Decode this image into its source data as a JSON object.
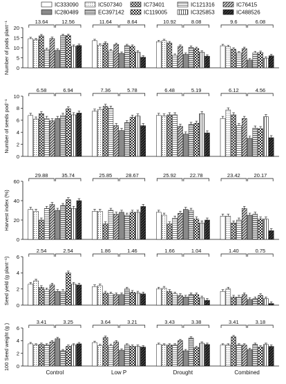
{
  "legend": [
    {
      "name": "IC333090",
      "pattern": "p0"
    },
    {
      "name": "IC507340",
      "pattern": "p1"
    },
    {
      "name": "IC73401",
      "pattern": "p2"
    },
    {
      "name": "IC121316",
      "pattern": "p3"
    },
    {
      "name": "IC76415",
      "pattern": "p4"
    },
    {
      "name": "IC280489",
      "pattern": "p5"
    },
    {
      "name": "EC397142",
      "pattern": "p6"
    },
    {
      "name": "IC119005",
      "pattern": "p7"
    },
    {
      "name": "IC325853",
      "pattern": "p8"
    },
    {
      "name": "IC488526",
      "pattern": "p9"
    }
  ],
  "chart_data": [
    {
      "type": "bar",
      "ylabel": "Number of pods plant⁻¹",
      "ylim": [
        0,
        20
      ],
      "yticks": [
        "0",
        "5",
        "10",
        "15",
        "20"
      ],
      "categories": [
        "Control",
        "Low P",
        "Drought",
        "Combined"
      ],
      "lsd": [
        "13.64",
        "12.56",
        "11.64",
        "8.64",
        "10.92",
        "8.08",
        "9.6",
        "6.08"
      ],
      "series": [
        {
          "name": "IC333090",
          "values": [
            14.5,
            13.5,
            13.0,
            11.0
          ]
        },
        {
          "name": "IC507340",
          "values": [
            13.9,
            11.3,
            13.5,
            10.5
          ]
        },
        {
          "name": "IC73401",
          "values": [
            15.9,
            12.2,
            12.4,
            9.3
          ]
        },
        {
          "name": "IC121316",
          "values": [
            9.0,
            8.4,
            6.2,
            7.4
          ]
        },
        {
          "name": "IC76415",
          "values": [
            14.6,
            11.6,
            10.7,
            9.6
          ]
        },
        {
          "name": "IC280489",
          "values": [
            8.7,
            7.2,
            6.7,
            3.9
          ]
        },
        {
          "name": "EC397142",
          "values": [
            16.0,
            11.0,
            10.2,
            7.5
          ]
        },
        {
          "name": "IC119005",
          "values": [
            16.1,
            10.7,
            9.6,
            7.6
          ]
        },
        {
          "name": "IC325853",
          "values": [
            10.7,
            7.8,
            7.8,
            4.8
          ]
        },
        {
          "name": "IC488526",
          "values": [
            11.1,
            5.3,
            5.8,
            6.0
          ]
        }
      ]
    },
    {
      "type": "bar",
      "ylabel": "Number of seeds pod⁻¹",
      "ylim": [
        0,
        10
      ],
      "yticks": [
        "0",
        "2",
        "4",
        "6",
        "8",
        "10"
      ],
      "categories": [
        "Control",
        "Low P",
        "Drought",
        "Combined"
      ],
      "lsd": [
        "6.58",
        "6.94",
        "7.36",
        "5.78",
        "6.48",
        "5.19",
        "6.12",
        "4.56"
      ],
      "series": [
        {
          "name": "IC333090",
          "values": [
            6.8,
            7.5,
            6.8,
            6.3
          ]
        },
        {
          "name": "IC507340",
          "values": [
            6.2,
            7.8,
            6.7,
            7.7
          ]
        },
        {
          "name": "IC73401",
          "values": [
            7.1,
            8.3,
            6.9,
            6.9
          ]
        },
        {
          "name": "IC121316",
          "values": [
            6.3,
            8.0,
            6.9,
            5.1
          ]
        },
        {
          "name": "IC76415",
          "values": [
            5.9,
            5.1,
            5.0,
            6.3
          ]
        },
        {
          "name": "IC280489",
          "values": [
            6.3,
            4.3,
            3.7,
            3.0
          ]
        },
        {
          "name": "EC397142",
          "values": [
            6.8,
            5.6,
            5.3,
            4.7
          ]
        },
        {
          "name": "IC119005",
          "values": [
            7.9,
            6.5,
            5.5,
            4.6
          ]
        },
        {
          "name": "IC325853",
          "values": [
            6.9,
            6.7,
            7.1,
            6.6
          ]
        },
        {
          "name": "IC488526",
          "values": [
            7.2,
            5.1,
            3.9,
            3.1
          ]
        }
      ]
    },
    {
      "type": "bar",
      "ylabel": "Harvest index (%)",
      "ylim": [
        0,
        60
      ],
      "yticks": [
        "0",
        "20",
        "40",
        "60"
      ],
      "categories": [
        "Control",
        "Low P",
        "Drought",
        "Combined"
      ],
      "lsd": [
        "29.88",
        "35.74",
        "25.85",
        "28.67",
        "25.92",
        "22.78",
        "23.42",
        "20.17"
      ],
      "series": [
        {
          "name": "IC333090",
          "values": [
            31,
            29,
            28,
            24
          ]
        },
        {
          "name": "IC507340",
          "values": [
            29,
            29,
            25,
            24
          ]
        },
        {
          "name": "IC73401",
          "values": [
            20,
            16,
            16,
            17
          ]
        },
        {
          "name": "IC121316",
          "values": [
            32,
            30,
            22,
            20
          ]
        },
        {
          "name": "IC76415",
          "values": [
            36,
            26,
            27,
            32
          ]
        },
        {
          "name": "IC280489",
          "values": [
            30,
            28,
            31,
            25
          ]
        },
        {
          "name": "EC397142",
          "values": [
            35,
            25,
            30,
            26
          ]
        },
        {
          "name": "IC119005",
          "values": [
            41,
            28,
            21,
            21
          ]
        },
        {
          "name": "IC325853",
          "values": [
            32,
            28,
            17,
            21
          ]
        },
        {
          "name": "IC488526",
          "values": [
            40,
            34,
            20,
            9
          ]
        }
      ]
    },
    {
      "type": "bar",
      "ylabel": "Seed yield (g plant⁻¹)",
      "ylim": [
        0,
        6
      ],
      "yticks": [
        "0",
        "2",
        "4",
        "6"
      ],
      "categories": [
        "Control",
        "Low P",
        "Drought",
        "Combined"
      ],
      "lsd": [
        "2.54",
        "2.54",
        "1.86",
        "1.46",
        "1.66",
        "1.04",
        "1.40",
        "0.75"
      ],
      "series": [
        {
          "name": "IC333090",
          "values": [
            2.6,
            2.3,
            2.0,
            1.7
          ]
        },
        {
          "name": "IC507340",
          "values": [
            3.0,
            2.4,
            2.1,
            2.0
          ]
        },
        {
          "name": "IC73401",
          "values": [
            2.2,
            1.5,
            1.7,
            1.0
          ]
        },
        {
          "name": "IC121316",
          "values": [
            1.9,
            1.4,
            1.4,
            1.0
          ]
        },
        {
          "name": "IC76415",
          "values": [
            2.5,
            1.3,
            1.2,
            1.3
          ]
        },
        {
          "name": "IC280489",
          "values": [
            1.7,
            1.3,
            1.0,
            0.7
          ]
        },
        {
          "name": "EC397142",
          "values": [
            1.7,
            2.0,
            1.3,
            0.8
          ]
        },
        {
          "name": "IC119005",
          "values": [
            4.0,
            1.6,
            1.3,
            1.2
          ]
        },
        {
          "name": "IC325853",
          "values": [
            2.6,
            1.5,
            0.9,
            0.8
          ]
        },
        {
          "name": "IC488526",
          "values": [
            2.5,
            1.4,
            0.6,
            0.2
          ]
        }
      ]
    },
    {
      "type": "bar",
      "ylabel": "100 Seed weight (g )",
      "ylim": [
        0,
        6
      ],
      "yticks": [
        "0",
        "2",
        "4",
        "6"
      ],
      "xlabel": "",
      "categories": [
        "Control",
        "Low P",
        "Drought",
        "Combined"
      ],
      "lsd": [
        "3.41",
        "3.25",
        "3.64",
        "3.21",
        "3.43",
        "3.38",
        "3.41",
        "3.18"
      ],
      "series": [
        {
          "name": "IC333090",
          "values": [
            3.5,
            3.7,
            3.4,
            3.3
          ]
        },
        {
          "name": "IC507340",
          "values": [
            3.3,
            3.2,
            3.3,
            3.3
          ]
        },
        {
          "name": "IC73401",
          "values": [
            3.4,
            4.5,
            3.3,
            4.6
          ]
        },
        {
          "name": "IC121316",
          "values": [
            3.3,
            3.2,
            3.3,
            3.3
          ]
        },
        {
          "name": "IC76415",
          "values": [
            3.8,
            3.8,
            4.0,
            3.3
          ]
        },
        {
          "name": "IC280489",
          "values": [
            4.3,
            2.5,
            2.4,
            2.6
          ]
        },
        {
          "name": "EC397142",
          "values": [
            2.4,
            3.3,
            4.4,
            3.4
          ]
        },
        {
          "name": "IC119005",
          "values": [
            3.1,
            3.1,
            2.9,
            3.0
          ]
        },
        {
          "name": "IC325853",
          "values": [
            3.3,
            3.1,
            3.6,
            3.4
          ]
        },
        {
          "name": "IC488526",
          "values": [
            3.5,
            3.0,
            3.4,
            3.1
          ]
        }
      ]
    }
  ]
}
